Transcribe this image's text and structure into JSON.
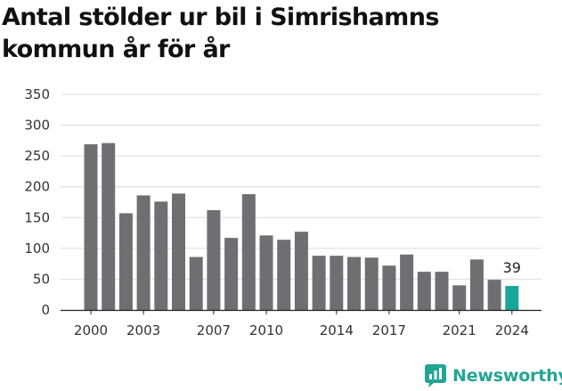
{
  "title": "Antal stölder ur bil i Simrishamns kommun år för år",
  "brand": {
    "name": "Newsworthy",
    "logo_icon": "newsworthy-chart-icon",
    "color": "#23a595"
  },
  "chart_data": {
    "type": "bar",
    "title": "Antal stölder ur bil i Simrishamns kommun år för år",
    "xlabel": "",
    "ylabel": "",
    "categories": [
      "2000",
      "2001",
      "2002",
      "2003",
      "2004",
      "2005",
      "2006",
      "2007",
      "2008",
      "2009",
      "2010",
      "2011",
      "2012",
      "2013",
      "2014",
      "2015",
      "2016",
      "2017",
      "2018",
      "2019",
      "2020",
      "2021",
      "2022",
      "2023",
      "2024"
    ],
    "values": [
      269,
      271,
      157,
      186,
      176,
      189,
      86,
      162,
      117,
      188,
      121,
      114,
      127,
      88,
      88,
      86,
      85,
      72,
      90,
      62,
      62,
      40,
      82,
      49,
      39
    ],
    "x_tick_labels": [
      "2000",
      "2003",
      "2007",
      "2010",
      "2014",
      "2017",
      "2021",
      "2024"
    ],
    "y_ticks": [
      0,
      50,
      100,
      150,
      200,
      250,
      300,
      350
    ],
    "ylim": [
      0,
      350
    ],
    "grid": "horizontal",
    "bar_color": "#6f6e72",
    "highlight_color": "#1aa59a",
    "highlight_category": "2024",
    "data_labels": [
      {
        "category": "2024",
        "text": "39"
      }
    ]
  }
}
